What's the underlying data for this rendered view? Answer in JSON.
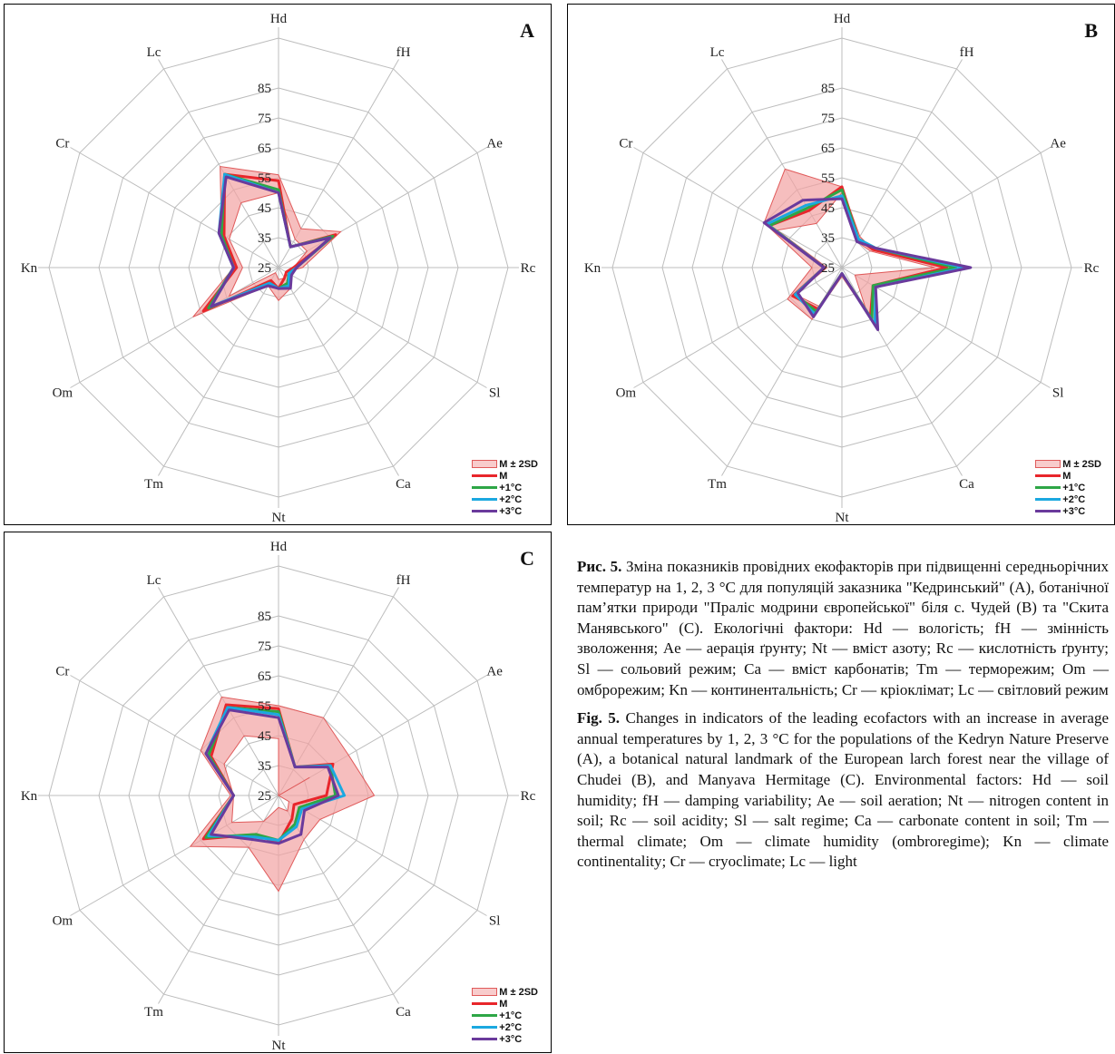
{
  "axes": [
    "Hd",
    "fH",
    "Ae",
    "Rc",
    "Sl",
    "Ca",
    "Nt",
    "Tm",
    "Om",
    "Kn",
    "Cr",
    "Lc"
  ],
  "colors": {
    "band_fill": "#f2a3a3",
    "band_stroke": "#e05a5a",
    "M": "#e8262b",
    "+1°C": "#2ea646",
    "+2°C": "#1ba8e0",
    "+3°C": "#6a3a9c",
    "grid": "#bdbdbd"
  },
  "legend": {
    "band": "M ± 2SD",
    "M": "M",
    "plus1": "+1°C",
    "plus2": "+2°C",
    "plus3": "+3°C"
  },
  "chart_data": [
    {
      "type": "radar",
      "panel": "A",
      "rlim": [
        25,
        85
      ],
      "ticks": [
        25,
        35,
        45,
        55,
        65,
        75,
        85
      ],
      "axes": [
        "Hd",
        "fH",
        "Ae",
        "Rc",
        "Sl",
        "Ca",
        "Nt",
        "Tm",
        "Om",
        "Kn",
        "Cr",
        "Lc"
      ],
      "band": {
        "lower": [
          50,
          36,
          36,
          30,
          28,
          29,
          29,
          27,
          44,
          37,
          44,
          50
        ],
        "upper": [
          56,
          40,
          49,
          33,
          28,
          33,
          36,
          32,
          58,
          40,
          47,
          64
        ]
      },
      "series": [
        {
          "name": "M",
          "values": [
            54,
            33,
            47,
            30,
            28,
            29,
            32,
            30,
            54,
            39,
            46,
            61
          ]
        },
        {
          "name": "+1°C",
          "values": [
            51,
            33,
            46,
            31,
            29,
            31,
            32,
            31,
            52,
            40,
            47,
            61
          ]
        },
        {
          "name": "+2°C",
          "values": [
            50,
            33,
            45,
            31,
            29,
            32,
            32,
            31,
            51,
            40,
            48,
            61
          ]
        },
        {
          "name": "+3°C",
          "values": [
            50,
            33,
            45,
            31,
            30,
            33,
            32,
            32,
            51,
            40,
            48,
            60
          ]
        }
      ]
    },
    {
      "type": "radar",
      "panel": "B",
      "rlim": [
        25,
        85
      ],
      "ticks": [
        25,
        35,
        45,
        55,
        65,
        75,
        85
      ],
      "axes": [
        "Hd",
        "fH",
        "Ae",
        "Rc",
        "Sl",
        "Ca",
        "Nt",
        "Tm",
        "Om",
        "Kn",
        "Cr",
        "Lc"
      ],
      "band": {
        "lower": [
          50,
          35,
          36,
          56,
          30,
          41,
          27,
          40,
          43,
          30,
          50,
          42
        ],
        "upper": [
          52,
          37,
          37,
          66,
          38,
          48,
          28,
          45,
          46,
          35,
          55,
          63
        ]
      },
      "series": [
        {
          "name": "M",
          "values": [
            52,
            36,
            37,
            60,
            37,
            44,
            27,
            41,
            44,
            31,
            53,
            47
          ]
        },
        {
          "name": "+1°C",
          "values": [
            51,
            36,
            38,
            63,
            37,
            45,
            27,
            42,
            43,
            31,
            53,
            48
          ]
        },
        {
          "name": "+2°C",
          "values": [
            49,
            36,
            38,
            66,
            38,
            47,
            27,
            43,
            43,
            31,
            54,
            49
          ]
        },
        {
          "name": "+3°C",
          "values": [
            48,
            35,
            38,
            68,
            38,
            49,
            27,
            44,
            42,
            31,
            55,
            51
          ]
        }
      ]
    },
    {
      "type": "radar",
      "panel": "C",
      "rlim": [
        25,
        85
      ],
      "ticks": [
        25,
        35,
        45,
        55,
        65,
        75,
        85
      ],
      "axes": [
        "Hd",
        "fH",
        "Ae",
        "Rc",
        "Sl",
        "Ca",
        "Nt",
        "Tm",
        "Om",
        "Kn",
        "Cr",
        "Lc"
      ],
      "band": {
        "lower": [
          44,
          25,
          37,
          25,
          29,
          31,
          29,
          35,
          43,
          40,
          46,
          48
        ],
        "upper": [
          55,
          55,
          52,
          57,
          41,
          42,
          57,
          45,
          59,
          41,
          55,
          63
        ]
      },
      "series": [
        {
          "name": "M",
          "values": [
            54,
            36,
            46,
            41,
            31,
            34,
            41,
            40,
            54,
            40,
            51,
            60
          ]
        },
        {
          "name": "+1°C",
          "values": [
            53,
            36,
            45,
            44,
            33,
            36,
            40,
            40,
            53,
            40,
            52,
            59
          ]
        },
        {
          "name": "+2°C",
          "values": [
            52,
            36,
            45,
            47,
            34,
            37,
            40,
            41,
            52,
            40,
            53,
            59
          ]
        },
        {
          "name": "+3°C",
          "values": [
            51,
            36,
            44,
            45,
            35,
            40,
            41,
            42,
            51,
            40,
            53,
            58
          ]
        }
      ]
    }
  ],
  "caption": {
    "ua_label": "Рис. 5.",
    "ua_text": " Зміна показників провідних екофакторів при підвищенні середньорічних температур на 1, 2, 3 °С для популяцій заказника \"Кедринський\" (А), ботанічної пам’ятки природи \"Праліс модрини європейської\" біля с. Чудей (В) та \"Скита Манявського\" (С). Екологічні фактори: Hd — вологість; fH — змінність зволоження; Ae — аерація ґрунту; Nt — вміст азоту; Rc — кислотність ґрунту; Sl — сольовий режим; Ca — вміст карбонатів; Tm — терморежим; Om — омброрежим; Kn — континентальність; Cr — кріоклімат; Lc — світловий режим",
    "en_label": "Fig. 5.",
    "en_text": " Changes in indicators of the leading ecofactors with an increase in average annual temperatures by 1, 2, 3 °C for the populations of the Kedryn Nature Preserve (A), a botanical natural landmark of the European larch forest near the village of Chudei (B), and Manyava Hermitage (C). Environmental factors: Hd — soil humidity; fH — damping variability; Ae — soil aeration; Nt — nitrogen content in soil; Rc — soil acidity; Sl — salt regime; Ca — carbonate content in soil; Tm — thermal climate; Om — climate humidity (ombroregime); Kn — climate continentality; Cr — cryoclimate; Lc — light"
  }
}
